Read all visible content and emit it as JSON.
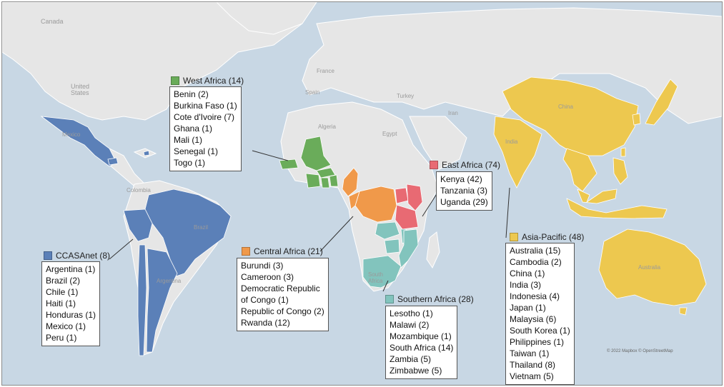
{
  "colors": {
    "ocean": "#c8d7e4",
    "land": "#e6e6e6",
    "border": "#ffffff",
    "west_africa": "#6aac5a",
    "east_africa": "#e86a73",
    "central_africa": "#f0994a",
    "southern_africa": "#82c4bd",
    "asia_pacific": "#edc84f",
    "ccasanet": "#5b80b8"
  },
  "country_labels": {
    "canada": "Canada",
    "united_states": "United\nStates",
    "mexico": "Mexico",
    "colombia": "Colombia",
    "brazil": "Brazil",
    "argentina": "Argentina",
    "france": "France",
    "spain": "Spain",
    "turkey": "Turkey",
    "iran": "Iran",
    "algeria": "Algeria",
    "egypt": "Egypt",
    "china": "China",
    "india": "India",
    "south_africa": "South\nAfrica",
    "australia": "Australia"
  },
  "regions": {
    "west_africa": {
      "title": "West Africa (14)",
      "items": [
        "Benin (2)",
        "Burkina Faso (1)",
        "Cote d'Ivoire (7)",
        "Ghana (1)",
        "Mali (1)",
        "Senegal (1)",
        "Togo (1)"
      ]
    },
    "east_africa": {
      "title": "East Africa (74)",
      "items": [
        "Kenya (42)",
        "Tanzania (3)",
        "Uganda (29)"
      ]
    },
    "central_africa": {
      "title": "Central Africa (21)",
      "items": [
        "Burundi (3)",
        "Cameroon (3)",
        "Democratic Republic",
        "of Congo (1)",
        "Republic of Congo (2)",
        "Rwanda (12)"
      ]
    },
    "southern_africa": {
      "title": "Southern Africa (28)",
      "items": [
        "Lesotho (1)",
        "Malawi (2)",
        "Mozambique (1)",
        "South Africa (14)",
        "Zambia (5)",
        "Zimbabwe (5)"
      ]
    },
    "asia_pacific": {
      "title": "Asia-Pacific (48)",
      "items": [
        "Australia (15)",
        "Cambodia (2)",
        "China (1)",
        "India (3)",
        "Indonesia (4)",
        "Japan (1)",
        "Malaysia (6)",
        "South Korea (1)",
        "Philippines (1)",
        "Taiwan (1)",
        "Thailand (8)",
        "Vietnam (5)"
      ]
    },
    "ccasanet": {
      "title": "CCASAnet (8)",
      "items": [
        "Argentina (1)",
        "Brazil (2)",
        "Chile (1)",
        "Haiti (1)",
        "Honduras (1)",
        "Mexico (1)",
        "Peru (1)"
      ]
    }
  },
  "attribution": "© 2022 Mapbox © OpenStreetMap"
}
